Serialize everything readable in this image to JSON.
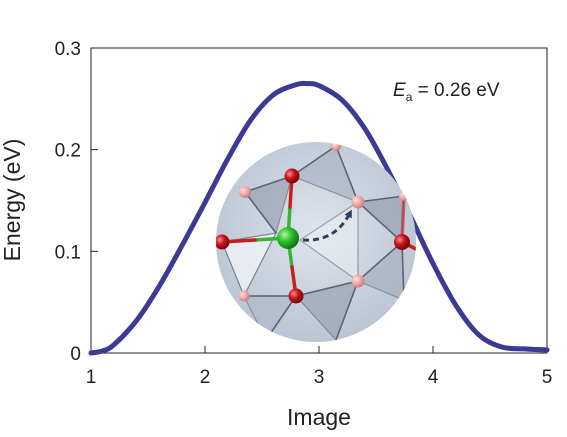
{
  "chart_data": {
    "type": "line",
    "xlabel": "Image",
    "ylabel": "Energy (eV)",
    "xlim": [
      1,
      5
    ],
    "ylim": [
      0,
      0.3
    ],
    "x_ticks": [
      1,
      2,
      3,
      4,
      5
    ],
    "x_tick_labels": [
      "1",
      "2",
      "3",
      "4",
      "5"
    ],
    "y_ticks": [
      0,
      0.1,
      0.2,
      0.3
    ],
    "y_tick_labels": [
      "0",
      "0.1",
      "0.2",
      "0.3"
    ],
    "grid": false,
    "annotation": {
      "symbol": "E",
      "subscript": "a",
      "value_text": " = 0.26 eV"
    },
    "series": [
      {
        "color": "#3b3b93",
        "x": [
          1.0,
          1.1,
          1.2,
          1.4,
          1.6,
          1.8,
          2.0,
          2.2,
          2.4,
          2.6,
          2.8,
          2.9,
          3.0,
          3.2,
          3.4,
          3.6,
          3.8,
          4.0,
          4.2,
          4.4,
          4.6,
          4.8,
          5.0
        ],
        "y": [
          0.0,
          0.002,
          0.008,
          0.032,
          0.066,
          0.106,
          0.148,
          0.191,
          0.229,
          0.254,
          0.264,
          0.265,
          0.263,
          0.249,
          0.221,
          0.181,
          0.135,
          0.088,
          0.047,
          0.018,
          0.006,
          0.004,
          0.003
        ]
      }
    ],
    "inset": {
      "type": "atomic-structure-image",
      "colors": {
        "metal_atom": "#27b527",
        "oxygen_atom": "#c5121a",
        "vacancy_site": "#e79a9a",
        "bond_red": "#c52020",
        "bond_green": "#38b238",
        "hop_arrow": "#2f4157",
        "background": "#c7d0dc"
      }
    }
  }
}
